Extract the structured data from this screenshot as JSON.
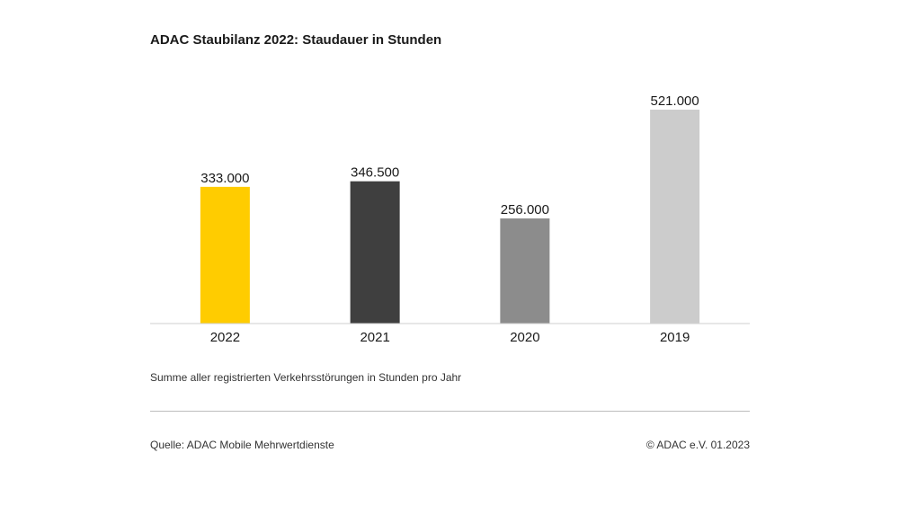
{
  "title": "ADAC Staubilanz 2022: Staudauer in Stunden",
  "note": "Summe aller registrierten Verkehrsstörungen in Stunden pro Jahr",
  "source": "Quelle: ADAC Mobile Mehrwertdienste",
  "copyright": "© ADAC e.V. 01.2023",
  "chart_data": {
    "type": "bar",
    "categories": [
      "2022",
      "2021",
      "2020",
      "2019"
    ],
    "values": [
      333000,
      346500,
      256000,
      521000
    ],
    "value_labels": [
      "333.000",
      "346.500",
      "256.000",
      "521.000"
    ],
    "colors": [
      "#ffcc00",
      "#3f3f3f",
      "#8c8c8c",
      "#cccccc"
    ],
    "title": "ADAC Staubilanz 2022: Staudauer in Stunden",
    "xlabel": "",
    "ylabel": "",
    "ylim": [
      0,
      521000
    ],
    "grid": false,
    "legend": "none"
  }
}
